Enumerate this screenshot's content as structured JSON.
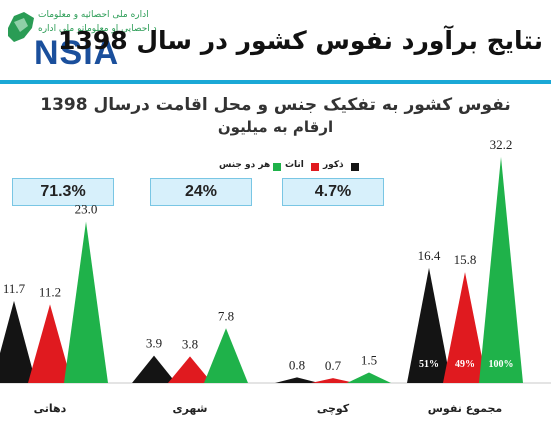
{
  "header": {
    "logo_line1": "اداره ملی احصائیه و معلومات",
    "logo_line2": "د احصایې او معلوماتو ملي اداره",
    "logo_text": "NSIA",
    "title": "نتایج برآورد نفوس کشور در سال 1398"
  },
  "percent_boxes": [
    "71.3%",
    "24%",
    "4.7%"
  ],
  "chart_data": {
    "type": "bar",
    "title": "نفوس کشور به تفکیک جنس و محل اقامت درسال 1398",
    "subtitle": "ارقام به میلیون",
    "categories": [
      "دهاتی",
      "شهری",
      "کوچی",
      "مجموع نفوس"
    ],
    "series": [
      {
        "name": "ذکور",
        "color": "#141414",
        "values": [
          11.7,
          3.9,
          0.8,
          16.4
        ]
      },
      {
        "name": "اناث",
        "color": "#e01a1f",
        "values": [
          11.2,
          3.8,
          0.7,
          15.8
        ]
      },
      {
        "name": "هر دو جنس",
        "color": "#1fb24a",
        "values": [
          23.0,
          7.8,
          1.5,
          32.2
        ]
      }
    ],
    "bar_labels": [
      "51%",
      "49%",
      "100%"
    ],
    "ylim": [
      0,
      32.2
    ],
    "grid": false,
    "legend_position": "top-center"
  }
}
